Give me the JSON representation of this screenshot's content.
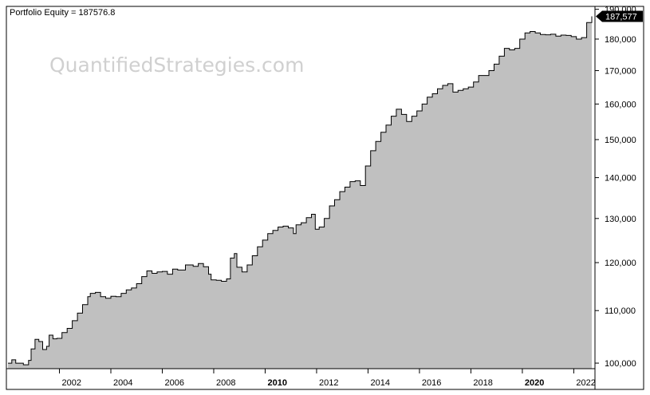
{
  "title": "Portfolio Equity = 187576.8",
  "watermark": "QuantifiedStrategies.com",
  "last_value_label": "187,577",
  "colors": {
    "area_fill": "#c0c0c0",
    "line": "#000000",
    "badge": "#000000",
    "watermark": "#d0d0d0"
  },
  "chart_data": {
    "type": "area",
    "title": "Portfolio Equity = 187576.8",
    "xlabel": "",
    "ylabel": "",
    "xlim": [
      2000.0,
      2022.7
    ],
    "ylim": [
      99000,
      191000
    ],
    "y_scale": "log",
    "grid": false,
    "x_ticks": [
      {
        "value": 2002,
        "label": "2002",
        "bold": false
      },
      {
        "value": 2004,
        "label": "2004",
        "bold": false
      },
      {
        "value": 2006,
        "label": "2006",
        "bold": false
      },
      {
        "value": 2008,
        "label": "2008",
        "bold": false
      },
      {
        "value": 2010,
        "label": "2010",
        "bold": true
      },
      {
        "value": 2012,
        "label": "2012",
        "bold": false
      },
      {
        "value": 2014,
        "label": "2014",
        "bold": false
      },
      {
        "value": 2016,
        "label": "2016",
        "bold": false
      },
      {
        "value": 2018,
        "label": "2018",
        "bold": false
      },
      {
        "value": 2020,
        "label": "2020",
        "bold": true
      },
      {
        "value": 2022,
        "label": "2022",
        "bold": false
      }
    ],
    "y_ticks": [
      {
        "value": 100000,
        "label": "100,000"
      },
      {
        "value": 110000,
        "label": "110,000"
      },
      {
        "value": 120000,
        "label": "120,000"
      },
      {
        "value": 130000,
        "label": "130,000"
      },
      {
        "value": 140000,
        "label": "140,000"
      },
      {
        "value": 150000,
        "label": "150,000"
      },
      {
        "value": 160000,
        "label": "160,000"
      },
      {
        "value": 170000,
        "label": "170,000"
      },
      {
        "value": 180000,
        "label": "180,000"
      },
      {
        "value": 190000,
        "label": "190,000"
      }
    ],
    "last_value": 187576.8,
    "series": [
      {
        "x": [
          2000.0,
          2000.15,
          2000.3,
          2000.6,
          2000.8,
          2000.9,
          2001.05,
          2001.2,
          2001.35,
          2001.5,
          2001.6,
          2001.75,
          2001.9,
          2002.1,
          2002.3,
          2002.5,
          2002.7,
          2002.9,
          2003.1,
          2003.2,
          2003.4,
          2003.6,
          2003.8,
          2004.0,
          2004.2,
          2004.4,
          2004.6,
          2004.8,
          2005.0,
          2005.2,
          2005.4,
          2005.6,
          2005.8,
          2006.0,
          2006.2,
          2006.4,
          2006.6,
          2006.9,
          2007.2,
          2007.4,
          2007.6,
          2007.8,
          2007.9,
          2008.1,
          2008.3,
          2008.5,
          2008.65,
          2008.8,
          2008.9,
          2009.1,
          2009.3,
          2009.5,
          2009.7,
          2009.9,
          2010.1,
          2010.3,
          2010.5,
          2010.7,
          2010.9,
          2011.1,
          2011.2,
          2011.4,
          2011.6,
          2011.8,
          2011.95,
          2012.1,
          2012.3,
          2012.5,
          2012.7,
          2012.9,
          2013.1,
          2013.3,
          2013.5,
          2013.7,
          2013.9,
          2014.1,
          2014.3,
          2014.5,
          2014.7,
          2014.9,
          2015.1,
          2015.3,
          2015.5,
          2015.7,
          2015.9,
          2016.1,
          2016.3,
          2016.5,
          2016.7,
          2016.9,
          2017.1,
          2017.3,
          2017.5,
          2017.7,
          2017.9,
          2018.1,
          2018.3,
          2018.5,
          2018.7,
          2018.9,
          2019.1,
          2019.3,
          2019.5,
          2019.7,
          2019.9,
          2020.1,
          2020.3,
          2020.5,
          2020.7,
          2020.9,
          2021.1,
          2021.3,
          2021.5,
          2021.7,
          2021.9,
          2022.1,
          2022.3,
          2022.5,
          2022.7
        ],
        "values": [
          100000,
          100600,
          100000,
          99700,
          100500,
          102600,
          104400,
          104000,
          102500,
          103100,
          105200,
          104500,
          104600,
          105700,
          106500,
          108000,
          109500,
          111200,
          112800,
          113500,
          113700,
          112800,
          112500,
          112900,
          112800,
          113500,
          114200,
          114600,
          115500,
          117000,
          118200,
          117700,
          118000,
          118100,
          117500,
          118600,
          118400,
          119500,
          119200,
          119800,
          119100,
          117500,
          116300,
          116200,
          116000,
          116500,
          121000,
          122000,
          119000,
          118000,
          119500,
          121500,
          123500,
          125000,
          126500,
          127200,
          128000,
          128200,
          127800,
          126500,
          128500,
          129000,
          130200,
          131000,
          127500,
          128000,
          130000,
          133000,
          134500,
          136500,
          137600,
          139000,
          139200,
          138000,
          143000,
          147000,
          149500,
          152000,
          154000,
          156500,
          158500,
          157000,
          155000,
          156500,
          158000,
          160000,
          162000,
          163000,
          164500,
          165500,
          166000,
          163500,
          164000,
          164500,
          165000,
          166500,
          168500,
          168500,
          170000,
          172000,
          174500,
          177000,
          176500,
          177000,
          180000,
          182000,
          182500,
          182000,
          181500,
          181400,
          181600,
          181000,
          181300,
          181200,
          180800,
          180000,
          180500,
          185500,
          187576.8
        ]
      }
    ]
  }
}
